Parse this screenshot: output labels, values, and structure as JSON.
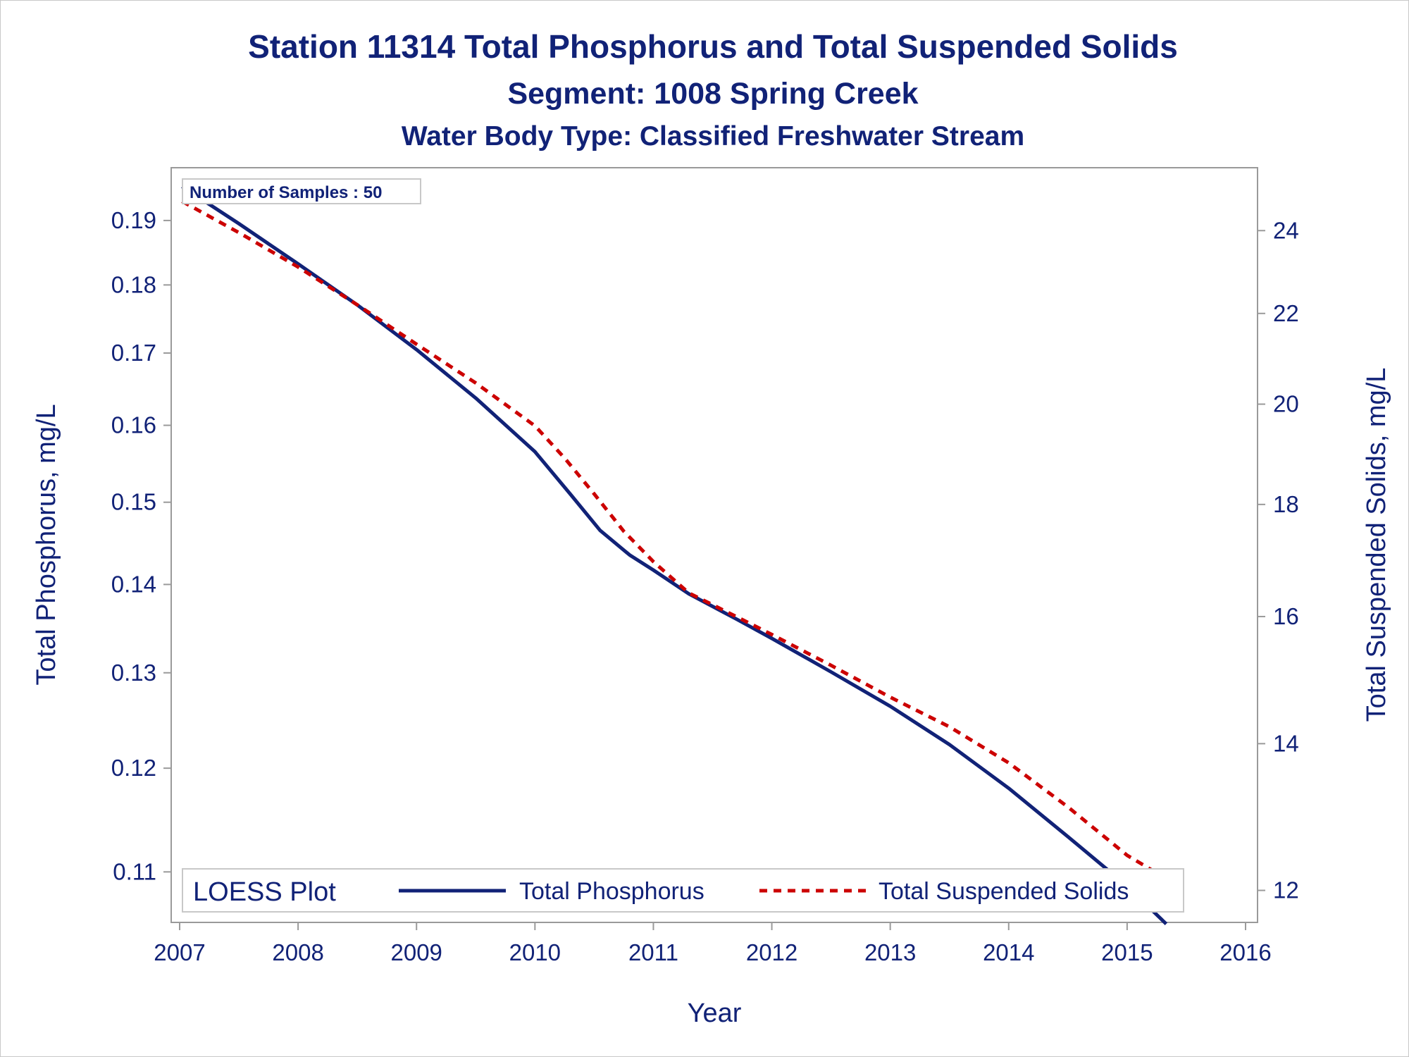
{
  "chart_data": {
    "type": "line",
    "title": "Station 11314  Total Phosphorus and Total Suspended Solids",
    "subtitle": "Segment: 1008  Spring Creek",
    "subtitle2": "Water Body Type: Classified Freshwater Stream",
    "xlabel": "Year",
    "ylabel": "Total Phosphorus, mg/L",
    "y2label": "Total Suspended Solids, mg/L",
    "x_ticks": [
      "2007",
      "2008",
      "2009",
      "2010",
      "2011",
      "2012",
      "2013",
      "2014",
      "2015",
      "2016"
    ],
    "xlim": [
      2007,
      2016
    ],
    "y_ticks": [
      "0.11",
      "0.12",
      "0.13",
      "0.14",
      "0.15",
      "0.16",
      "0.17",
      "0.18",
      "0.19"
    ],
    "y_scale": "log",
    "ylim": [
      0.1065,
      0.1965
    ],
    "y2_ticks": [
      "12",
      "14",
      "16",
      "18",
      "20",
      "22",
      "24"
    ],
    "y2_scale": "log",
    "y2lim": [
      11.75,
      25.3
    ],
    "annotation": "Number of Samples : 50",
    "legend": {
      "title": "LOESS Plot",
      "position": "bottom-inside",
      "items": [
        {
          "label": "Total Phosphorus",
          "color": "#112277",
          "style": "solid"
        },
        {
          "label": "Total Suspended Solids",
          "color": "#cc0000",
          "style": "dashed"
        }
      ]
    },
    "series": [
      {
        "name": "Total Phosphorus",
        "axis": "left",
        "color": "#112277",
        "x": [
          2007.02,
          2007.5,
          2008.0,
          2008.5,
          2009.0,
          2009.5,
          2010.0,
          2010.3,
          2010.55,
          2010.8,
          2011.0,
          2011.3,
          2011.7,
          2012.0,
          2012.5,
          2013.0,
          2013.5,
          2014.0,
          2014.5,
          2015.0,
          2015.33
        ],
        "y": [
          0.1955,
          0.1895,
          0.1832,
          0.177,
          0.1705,
          0.1637,
          0.1565,
          0.151,
          0.1465,
          0.1435,
          0.1417,
          0.1389,
          0.136,
          0.1338,
          0.1301,
          0.1264,
          0.1224,
          0.118,
          0.1133,
          0.1087,
          0.1053
        ]
      },
      {
        "name": "Total Suspended Solids",
        "axis": "right",
        "color": "#cc0000",
        "x": [
          2007.02,
          2007.5,
          2008.0,
          2008.5,
          2009.0,
          2009.5,
          2010.0,
          2010.25,
          2010.5,
          2010.75,
          2011.0,
          2011.3,
          2011.7,
          2012.0,
          2012.5,
          2013.0,
          2013.5,
          2014.0,
          2014.5,
          2015.0,
          2015.33
        ],
        "y": [
          24.75,
          23.95,
          23.1,
          22.2,
          21.3,
          20.45,
          19.55,
          18.9,
          18.2,
          17.5,
          16.95,
          16.4,
          16.0,
          15.7,
          15.2,
          14.7,
          14.25,
          13.72,
          13.1,
          12.45,
          12.15
        ]
      }
    ]
  }
}
